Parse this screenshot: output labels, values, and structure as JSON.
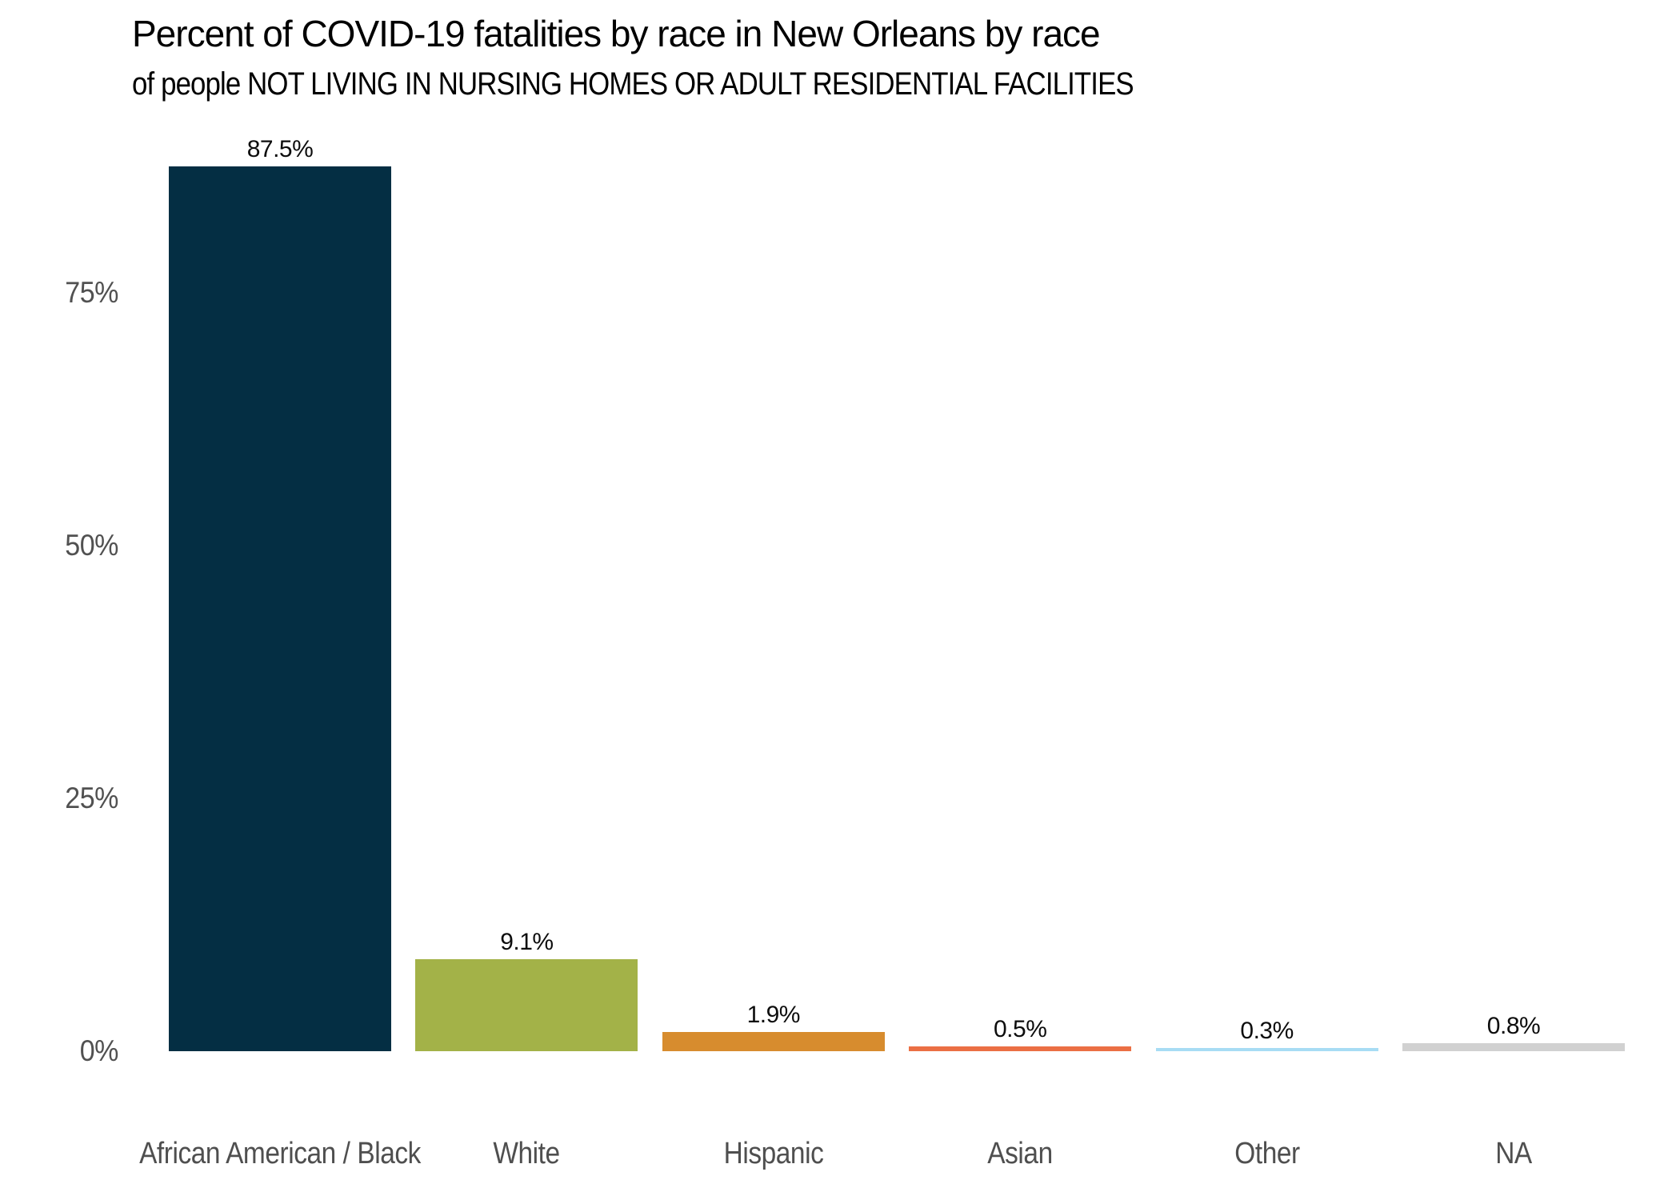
{
  "header": {
    "title": "Percent of COVID-19 fatalities by race in New Orleans by race",
    "subtitle": "of people NOT LIVING IN NURSING HOMES OR ADULT RESIDENTIAL FACILITIES"
  },
  "chart_data": {
    "type": "bar",
    "title": "Percent of COVID-19 fatalities by race in New Orleans by race",
    "subtitle": "of people NOT LIVING IN NURSING HOMES OR ADULT RESIDENTIAL FACILITIES",
    "categories": [
      "African American / Black",
      "White",
      "Hispanic",
      "Asian",
      "Other",
      "NA"
    ],
    "values": [
      87.5,
      9.1,
      1.9,
      0.5,
      0.3,
      0.8
    ],
    "value_labels": [
      "87.5%",
      "9.1%",
      "1.9%",
      "0.5%",
      "0.3%",
      "0.8%"
    ],
    "bar_colors": [
      "#042e43",
      "#a3b248",
      "#d78c2e",
      "#eb6f44",
      "#a7dcf4",
      "#d1d1d1"
    ],
    "xlabel": "",
    "ylabel": "",
    "ylim": [
      0,
      92
    ],
    "yticks": [
      {
        "value": 0,
        "label": "0%"
      },
      {
        "value": 25,
        "label": "25%"
      },
      {
        "value": 50,
        "label": "50%"
      },
      {
        "value": 75,
        "label": "75%"
      }
    ],
    "grid": false,
    "legend": "none",
    "axis_text_color": "#515151",
    "value_text_color": "#0d0d0d",
    "background_color": "#ffffff"
  }
}
